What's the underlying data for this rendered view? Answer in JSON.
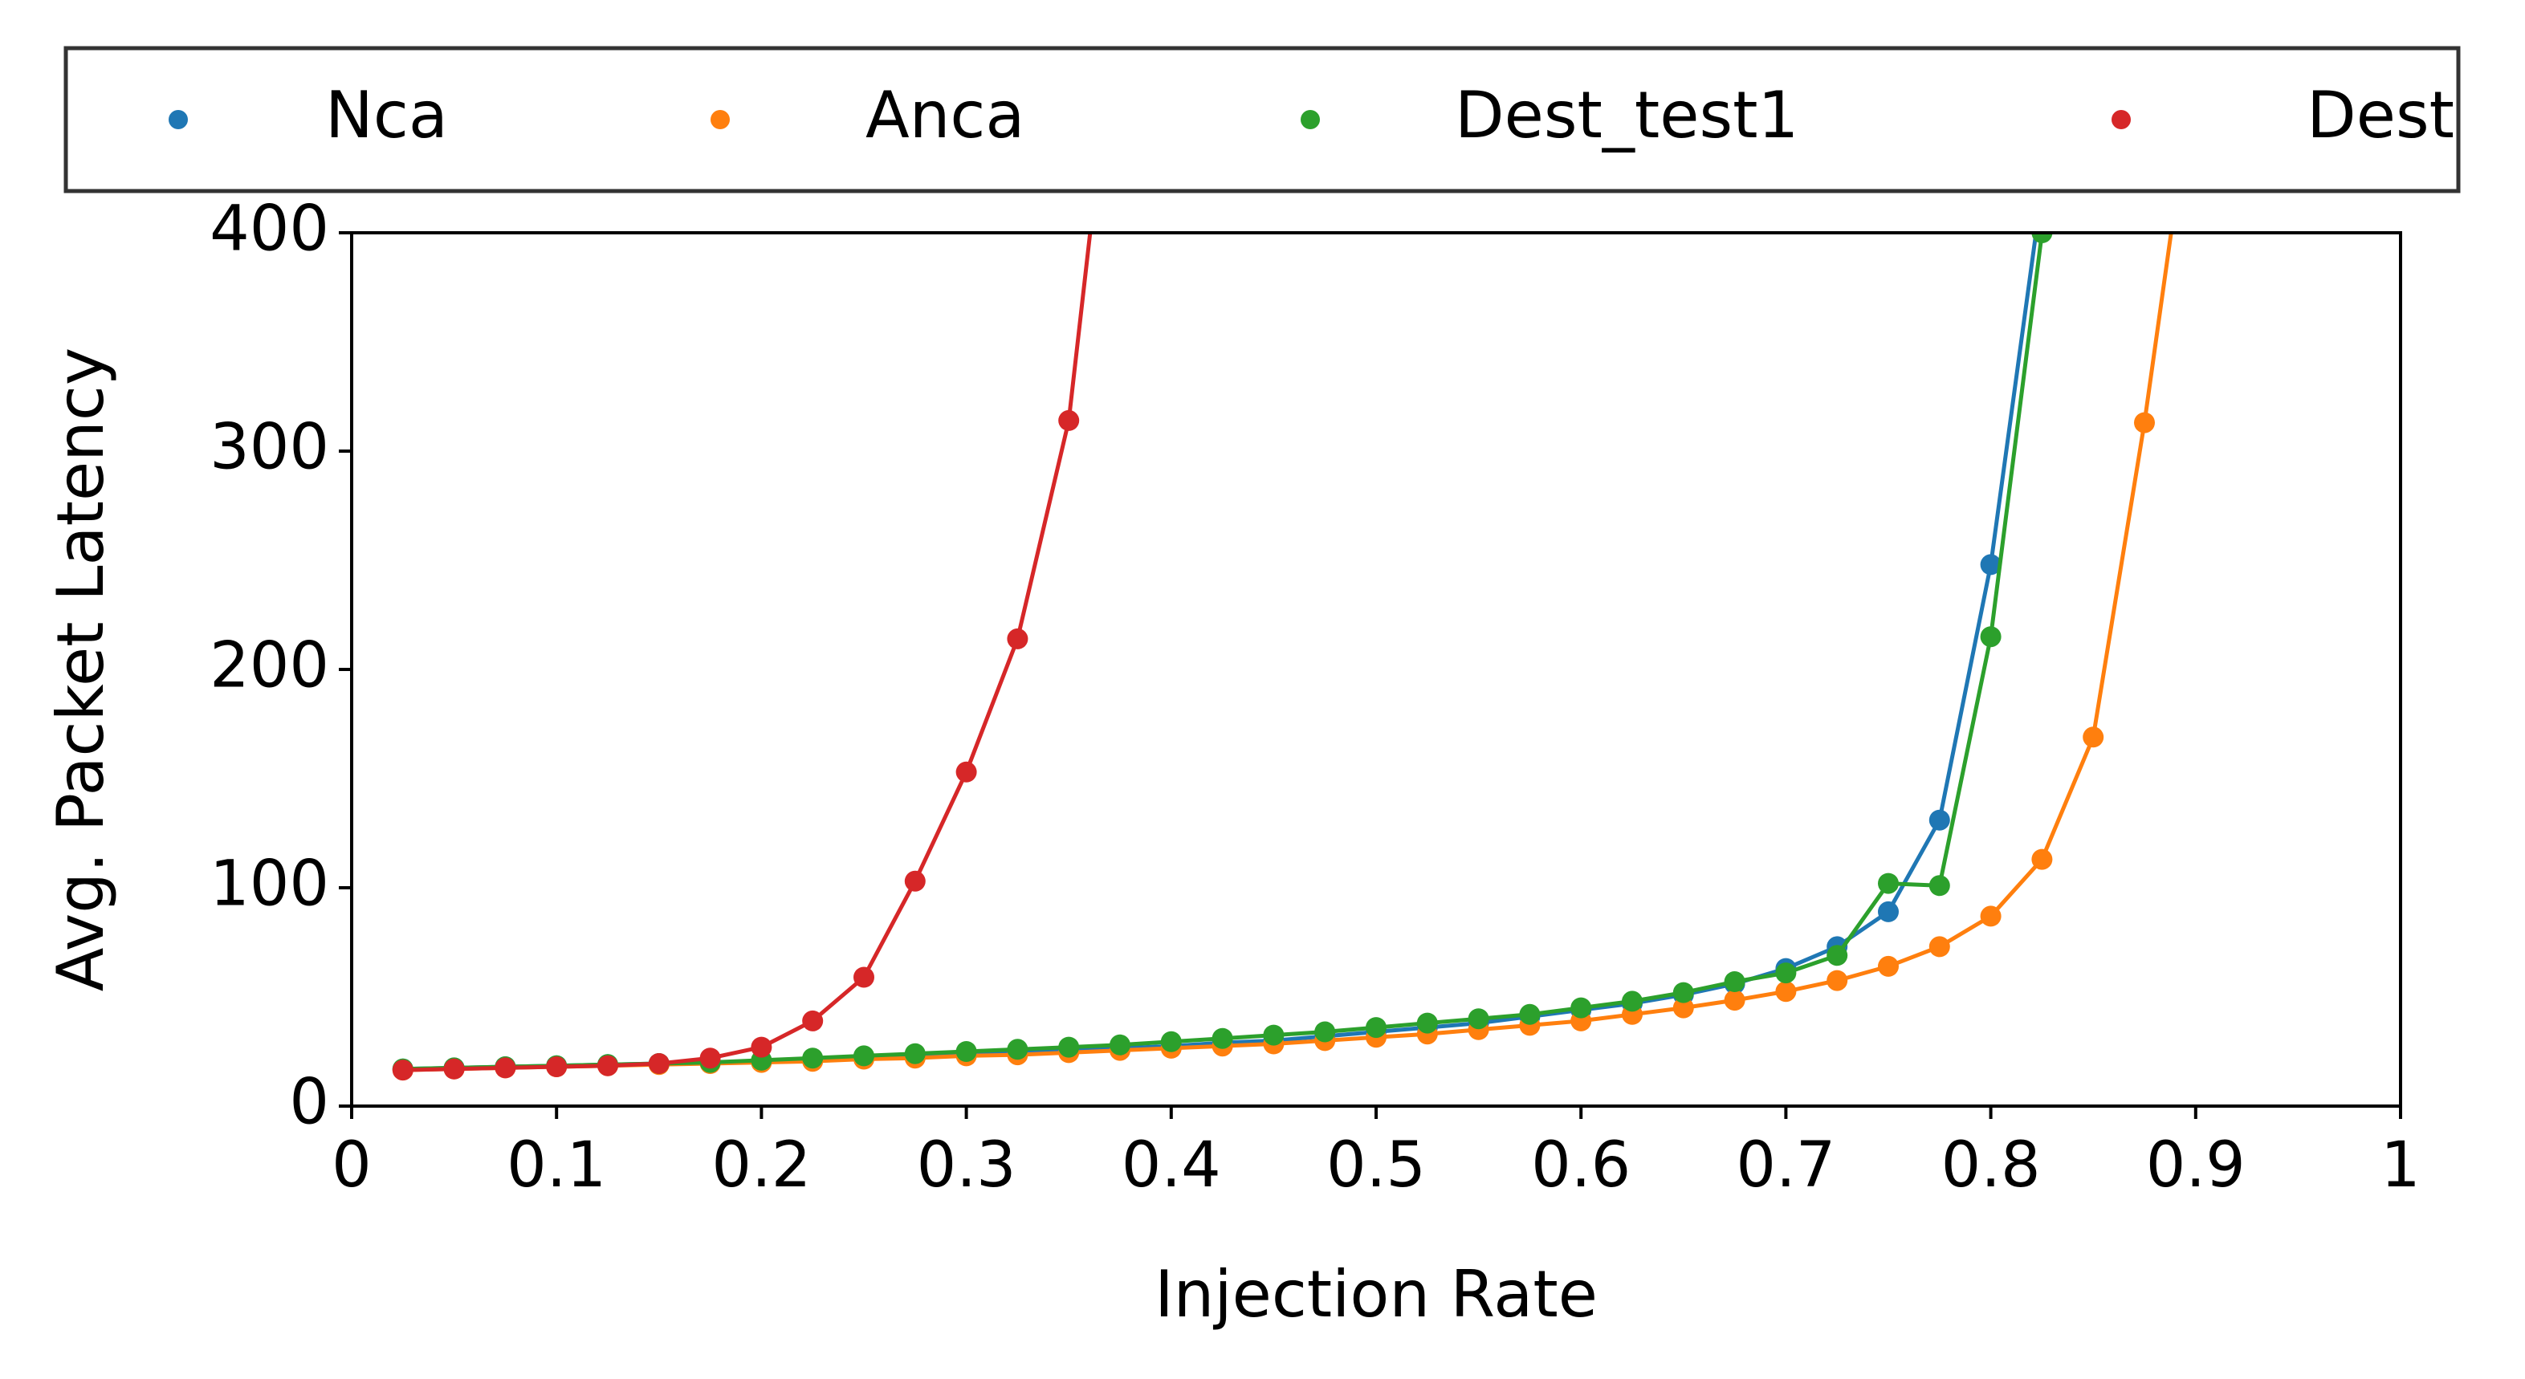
{
  "chart_data": {
    "type": "line",
    "title": "",
    "xlabel": "Injection Rate",
    "ylabel": "Avg. Packet Latency",
    "xlim": [
      0,
      1
    ],
    "ylim": [
      0,
      400
    ],
    "xticks": [
      {
        "value": 0,
        "label": "0"
      },
      {
        "value": 0.1,
        "label": "0.1"
      },
      {
        "value": 0.2,
        "label": "0.2"
      },
      {
        "value": 0.3,
        "label": "0.3"
      },
      {
        "value": 0.4,
        "label": "0.4"
      },
      {
        "value": 0.5,
        "label": "0.5"
      },
      {
        "value": 0.6,
        "label": "0.6"
      },
      {
        "value": 0.7,
        "label": "0.7"
      },
      {
        "value": 0.8,
        "label": "0.8"
      },
      {
        "value": 0.9,
        "label": "0.9"
      },
      {
        "value": 1,
        "label": "1"
      }
    ],
    "yticks": [
      {
        "value": 0,
        "label": "0"
      },
      {
        "value": 100,
        "label": "100"
      },
      {
        "value": 200,
        "label": "200"
      },
      {
        "value": 300,
        "label": "300"
      },
      {
        "value": 400,
        "label": "400"
      }
    ],
    "grid": false,
    "legend_position": "top",
    "series": [
      {
        "name": "Nca",
        "color": "#1f77b4",
        "points": [
          [
            0.025,
            17
          ],
          [
            0.05,
            17.5
          ],
          [
            0.075,
            18
          ],
          [
            0.1,
            18.5
          ],
          [
            0.125,
            19
          ],
          [
            0.15,
            19.5
          ],
          [
            0.175,
            20
          ],
          [
            0.2,
            20.5
          ],
          [
            0.225,
            21
          ],
          [
            0.25,
            22
          ],
          [
            0.275,
            22.5
          ],
          [
            0.3,
            23.5
          ],
          [
            0.325,
            24.5
          ],
          [
            0.35,
            25.5
          ],
          [
            0.375,
            26.5
          ],
          [
            0.4,
            27.5
          ],
          [
            0.425,
            29
          ],
          [
            0.45,
            30
          ],
          [
            0.475,
            32
          ],
          [
            0.5,
            34
          ],
          [
            0.525,
            36
          ],
          [
            0.55,
            38
          ],
          [
            0.575,
            41
          ],
          [
            0.6,
            44
          ],
          [
            0.625,
            47
          ],
          [
            0.65,
            51
          ],
          [
            0.675,
            56
          ],
          [
            0.7,
            63
          ],
          [
            0.725,
            73
          ],
          [
            0.75,
            89
          ],
          [
            0.775,
            131
          ],
          [
            0.8,
            248
          ],
          [
            0.825,
            420
          ]
        ]
      },
      {
        "name": "Anca",
        "color": "#ff7f0e",
        "points": [
          [
            0.025,
            16.5
          ],
          [
            0.05,
            17
          ],
          [
            0.075,
            17.5
          ],
          [
            0.1,
            18
          ],
          [
            0.125,
            18.5
          ],
          [
            0.15,
            19
          ],
          [
            0.175,
            19.5
          ],
          [
            0.2,
            20
          ],
          [
            0.225,
            20.5
          ],
          [
            0.25,
            21.5
          ],
          [
            0.275,
            22
          ],
          [
            0.3,
            23
          ],
          [
            0.325,
            23.5
          ],
          [
            0.35,
            24.5
          ],
          [
            0.375,
            25.5
          ],
          [
            0.4,
            26.5
          ],
          [
            0.425,
            27.5
          ],
          [
            0.45,
            28.5
          ],
          [
            0.475,
            30
          ],
          [
            0.5,
            31.5
          ],
          [
            0.525,
            33
          ],
          [
            0.55,
            35
          ],
          [
            0.575,
            37
          ],
          [
            0.6,
            39
          ],
          [
            0.625,
            42
          ],
          [
            0.65,
            45
          ],
          [
            0.675,
            48.5
          ],
          [
            0.7,
            52.5
          ],
          [
            0.725,
            57.5
          ],
          [
            0.75,
            64
          ],
          [
            0.775,
            73
          ],
          [
            0.8,
            87
          ],
          [
            0.825,
            113
          ],
          [
            0.85,
            169
          ],
          [
            0.875,
            313
          ],
          [
            0.9,
            480
          ]
        ]
      },
      {
        "name": "Dest_test1",
        "color": "#2ca02c",
        "points": [
          [
            0.025,
            17
          ],
          [
            0.05,
            17.5
          ],
          [
            0.075,
            18
          ],
          [
            0.1,
            18.5
          ],
          [
            0.125,
            19
          ],
          [
            0.15,
            19.5
          ],
          [
            0.175,
            20
          ],
          [
            0.2,
            21
          ],
          [
            0.225,
            22
          ],
          [
            0.25,
            23
          ],
          [
            0.275,
            24
          ],
          [
            0.3,
            25
          ],
          [
            0.325,
            26
          ],
          [
            0.35,
            27
          ],
          [
            0.375,
            28
          ],
          [
            0.4,
            29.5
          ],
          [
            0.425,
            31
          ],
          [
            0.45,
            32.5
          ],
          [
            0.475,
            34
          ],
          [
            0.5,
            36
          ],
          [
            0.525,
            38
          ],
          [
            0.55,
            40
          ],
          [
            0.575,
            42
          ],
          [
            0.6,
            45
          ],
          [
            0.625,
            48
          ],
          [
            0.65,
            52
          ],
          [
            0.675,
            57
          ],
          [
            0.7,
            61
          ],
          [
            0.725,
            69
          ],
          [
            0.75,
            102
          ],
          [
            0.775,
            101
          ],
          [
            0.8,
            215
          ],
          [
            0.825,
            400
          ]
        ]
      },
      {
        "name": "Dest",
        "color": "#d62728",
        "points": [
          [
            0.025,
            16.5
          ],
          [
            0.05,
            17
          ],
          [
            0.075,
            17.5
          ],
          [
            0.1,
            18
          ],
          [
            0.125,
            18.5
          ],
          [
            0.15,
            19.5
          ],
          [
            0.175,
            22
          ],
          [
            0.2,
            27
          ],
          [
            0.225,
            39
          ],
          [
            0.25,
            59
          ],
          [
            0.275,
            103
          ],
          [
            0.3,
            153
          ],
          [
            0.325,
            214
          ],
          [
            0.35,
            314
          ],
          [
            0.375,
            520
          ]
        ]
      }
    ]
  }
}
